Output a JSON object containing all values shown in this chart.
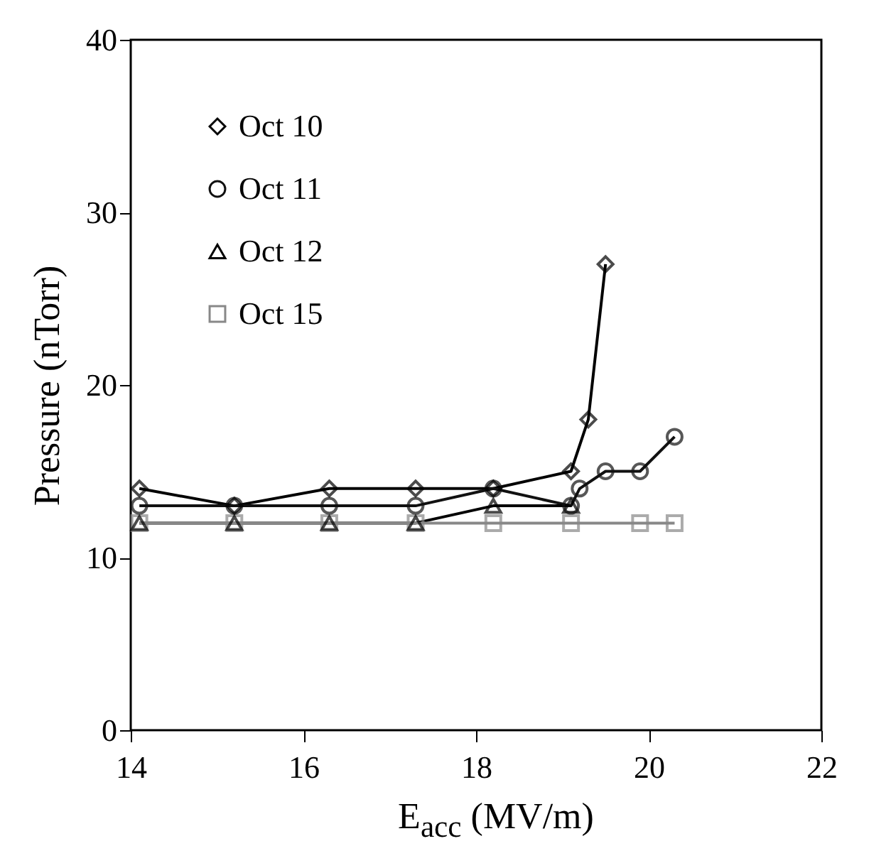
{
  "chart_data": {
    "type": "line",
    "xlabel": "E$_{acc}$ (MV/m)",
    "ylabel": "Pressure  (nTorr)",
    "xlim": [
      14,
      22
    ],
    "xticks": [
      14,
      16,
      18,
      20,
      22
    ],
    "ylim": [
      0,
      40
    ],
    "yticks": [
      0,
      10,
      20,
      30,
      40
    ],
    "legend": "top left",
    "grid": false,
    "series": [
      {
        "name": "Oct 10",
        "color": "#000000",
        "marker": "diamond",
        "x": [
          14.1,
          15.2,
          16.3,
          17.3,
          18.2,
          19.1,
          19.3,
          19.5
        ],
        "values": [
          14,
          13,
          14,
          14,
          14,
          15,
          18,
          27
        ]
      },
      {
        "name": "Oct 11",
        "color": "#111111",
        "marker": "circle",
        "x": [
          14.1,
          15.2,
          16.3,
          17.3,
          18.2,
          19.1,
          19.2,
          19.5,
          19.9,
          20.3
        ],
        "values": [
          13,
          13,
          13,
          13,
          14,
          13,
          14,
          15,
          15,
          17
        ]
      },
      {
        "name": "Oct 12",
        "color": "#000000",
        "marker": "triangle",
        "x": [
          14.1,
          15.2,
          16.3,
          17.3,
          18.2,
          19.1
        ],
        "values": [
          12,
          12,
          12,
          12,
          13,
          13
        ]
      },
      {
        "name": "Oct 15",
        "color": "#888888",
        "marker": "square",
        "x": [
          14.1,
          15.2,
          16.3,
          17.3,
          18.2,
          19.1,
          19.9,
          20.3
        ],
        "values": [
          12,
          12,
          12,
          12,
          12,
          12,
          12,
          12
        ]
      }
    ]
  }
}
